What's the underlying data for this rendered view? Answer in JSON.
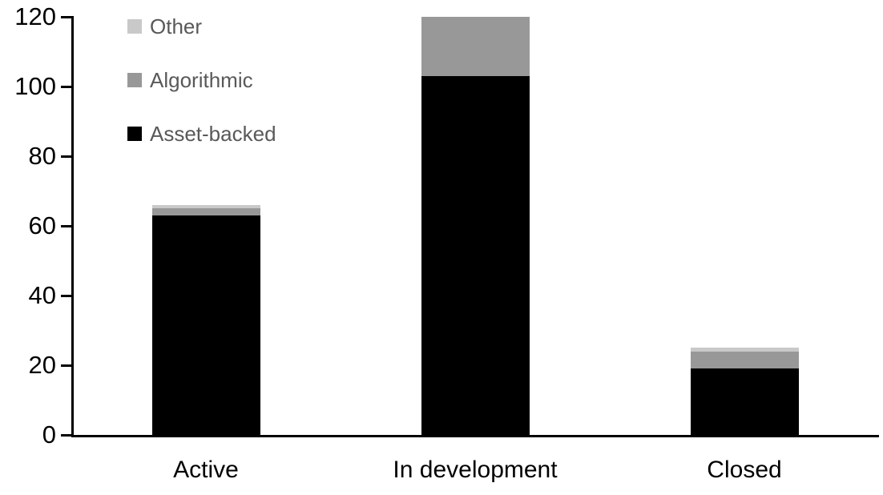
{
  "chart_data": {
    "type": "bar",
    "stacked": true,
    "title": "",
    "xlabel": "",
    "ylabel": "",
    "categories": [
      "Active",
      "In development",
      "Closed"
    ],
    "series": [
      {
        "name": "Asset-backed",
        "color": "#000000",
        "values": [
          63,
          103,
          19
        ]
      },
      {
        "name": "Algorithmic",
        "color": "#989898",
        "values": [
          2,
          17,
          5
        ]
      },
      {
        "name": "Other",
        "color": "#c9c9c9",
        "values": [
          1,
          0,
          1
        ]
      }
    ],
    "totals": [
      66,
      120,
      25
    ],
    "y_axis": {
      "min": 0,
      "max": 120,
      "tick_interval": 20,
      "ticks": [
        0,
        20,
        40,
        60,
        80,
        100,
        120
      ]
    },
    "grid": false,
    "legend": {
      "position": "top-left-inside",
      "order": [
        "Other",
        "Algorithmic",
        "Asset-backed"
      ],
      "text_color": "#595959"
    },
    "axis_color": "#000000",
    "background_color": "#ffffff"
  }
}
